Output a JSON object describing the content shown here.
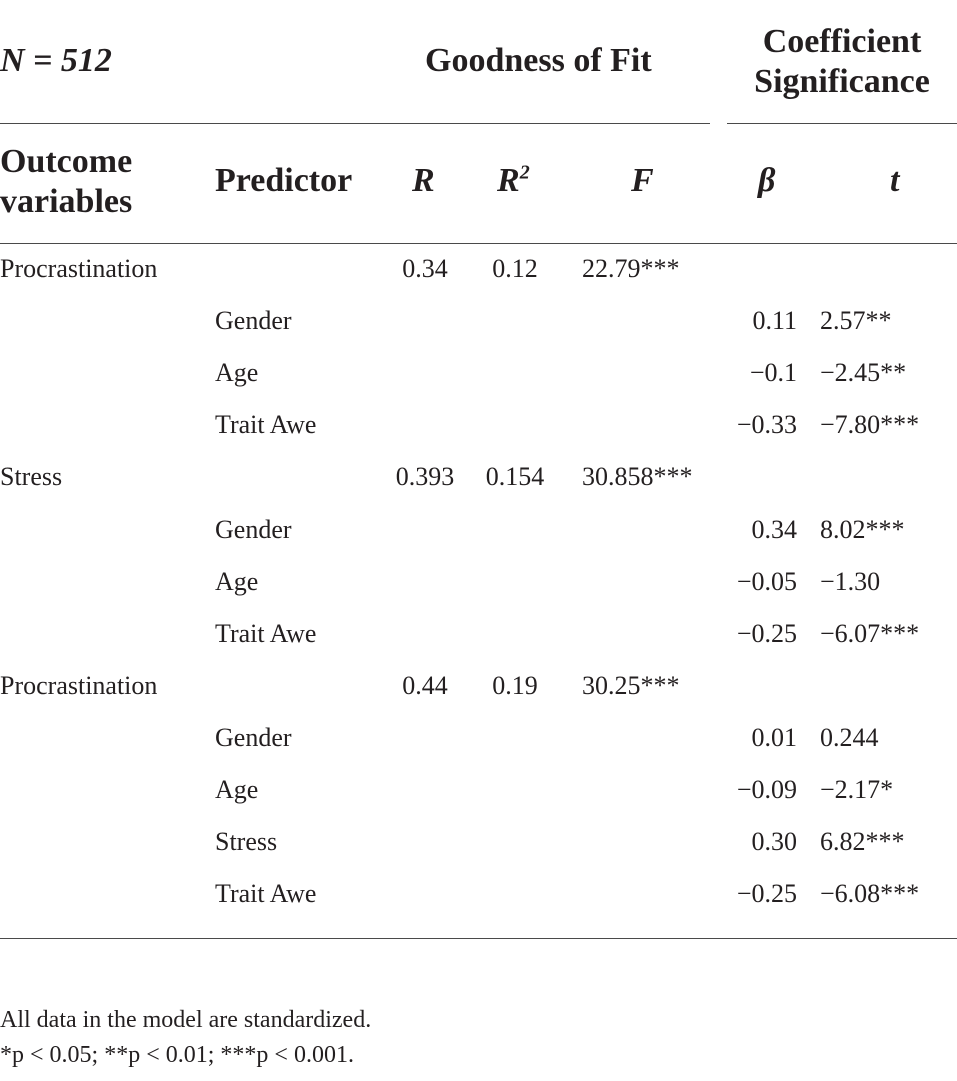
{
  "header": {
    "n_label": "N = 512",
    "group_fit": "Goodness of Fit",
    "group_coef_line1": "Coefficient",
    "group_coef_line2": "Significance",
    "col_outcome_line1": "Outcome",
    "col_outcome_line2": "variables",
    "col_predictor": "Predictor",
    "col_r": "R",
    "col_r2_base": "R",
    "col_r2_sup": "2",
    "col_f": "F",
    "col_beta": "β",
    "col_t": "t"
  },
  "rows": [
    {
      "outcome": "Procrastination",
      "predictor": "",
      "r": "0.34",
      "r2": "0.12",
      "f": "22.79***",
      "beta": "",
      "t": ""
    },
    {
      "outcome": "",
      "predictor": "Gender",
      "r": "",
      "r2": "",
      "f": "",
      "beta": "0.11",
      "t": "2.57**"
    },
    {
      "outcome": "",
      "predictor": "Age",
      "r": "",
      "r2": "",
      "f": "",
      "beta": "−0.1",
      "t": "−2.45**"
    },
    {
      "outcome": "",
      "predictor": "Trait Awe",
      "r": "",
      "r2": "",
      "f": "",
      "beta": "−0.33",
      "t": "−7.80***"
    },
    {
      "outcome": "Stress",
      "predictor": "",
      "r": "0.393",
      "r2": "0.154",
      "f": "30.858***",
      "beta": "",
      "t": ""
    },
    {
      "outcome": "",
      "predictor": "Gender",
      "r": "",
      "r2": "",
      "f": "",
      "beta": "0.34",
      "t": "8.02***"
    },
    {
      "outcome": "",
      "predictor": "Age",
      "r": "",
      "r2": "",
      "f": "",
      "beta": "−0.05",
      "t": "−1.30"
    },
    {
      "outcome": "",
      "predictor": "Trait Awe",
      "r": "",
      "r2": "",
      "f": "",
      "beta": "−0.25",
      "t": "−6.07***"
    },
    {
      "outcome": "Procrastination",
      "predictor": "",
      "r": "0.44",
      "r2": "0.19",
      "f": "30.25***",
      "beta": "",
      "t": ""
    },
    {
      "outcome": "",
      "predictor": "Gender",
      "r": "",
      "r2": "",
      "f": "",
      "beta": "0.01",
      "t": "0.244"
    },
    {
      "outcome": "",
      "predictor": "Age",
      "r": "",
      "r2": "",
      "f": "",
      "beta": "−0.09",
      "t": "−2.17*"
    },
    {
      "outcome": "",
      "predictor": "Stress",
      "r": "",
      "r2": "",
      "f": "",
      "beta": "0.30",
      "t": "6.82***"
    },
    {
      "outcome": "",
      "predictor": "Trait Awe",
      "r": "",
      "r2": "",
      "f": "",
      "beta": "−0.25",
      "t": "−6.08***"
    }
  ],
  "notes": {
    "line1": "All data in the model are standardized.",
    "line2": "*p < 0.05; **p < 0.01; ***p < 0.001."
  }
}
